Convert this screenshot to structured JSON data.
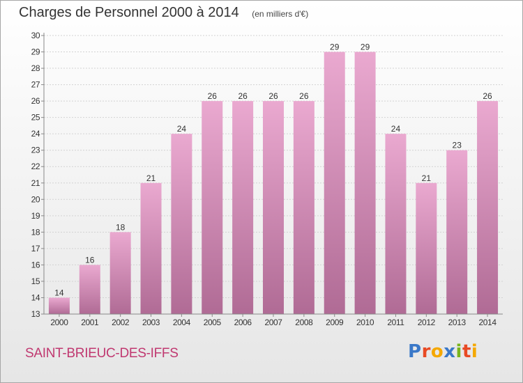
{
  "header": {
    "title": "Charges de Personnel 2000 à 2014",
    "subtitle": "(en milliers d'€)"
  },
  "footer": {
    "commune": "SAINT-BRIEUC-DES-IFFS",
    "brand": "Proxiti"
  },
  "colors": {
    "bar_top": "#eaa9d0",
    "bar_bottom": "#b06b95",
    "commune_text": "#c03870",
    "logo": [
      "#3a78c8",
      "#e84a24",
      "#f5a800",
      "#3a78c8",
      "#7ab51d",
      "#e84a24",
      "#f5a800"
    ]
  },
  "chart_data": {
    "type": "bar",
    "categories": [
      "2000",
      "2001",
      "2002",
      "2003",
      "2004",
      "2005",
      "2006",
      "2007",
      "2008",
      "2009",
      "2010",
      "2011",
      "2012",
      "2013",
      "2014"
    ],
    "values": [
      14,
      16,
      18,
      21,
      24,
      26,
      26,
      26,
      26,
      29,
      29,
      24,
      21,
      23,
      26
    ],
    "title": "Charges de Personnel 2000 à 2014",
    "subtitle": "(en milliers d'€)",
    "xlabel": "",
    "ylabel": "",
    "ylim": [
      13,
      30
    ],
    "yticks": [
      13,
      14,
      15,
      16,
      17,
      18,
      19,
      20,
      21,
      22,
      23,
      24,
      25,
      26,
      27,
      28,
      29,
      30
    ],
    "grid": true,
    "data_labels": true,
    "legend": "none"
  }
}
